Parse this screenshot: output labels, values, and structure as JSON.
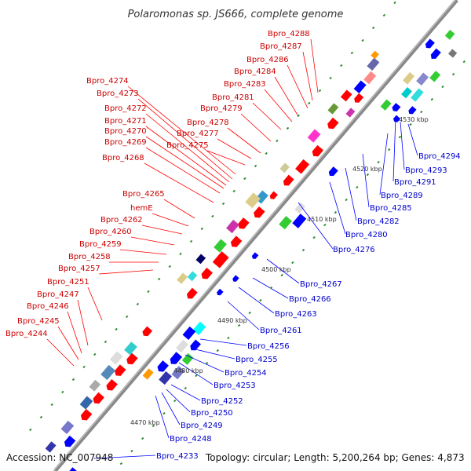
{
  "title": "Polaromonas sp. JS666, complete genome",
  "footer": {
    "accession": "Accession: NC_007948",
    "topology": "Topology: circular; Length: 5,200,264 bp; Genes: 4,873",
    "bottom_gene": "Bpro_4233"
  },
  "colors": {
    "backbone": "#8a8a8a",
    "top_label": "#cc0000",
    "bottom_label": "#0000cc",
    "tick": "#2e8b2e"
  },
  "top_genes": [
    "Bpro_4288",
    "Bpro_4287",
    "Bpro_4286",
    "Bpro_4284",
    "Bpro_4283",
    "Bpro_4281",
    "Bpro_4279",
    "Bpro_4278",
    "Bpro_4277",
    "Bpro_4275",
    "Bpro_4274",
    "Bpro_4273",
    "Bpro_4272",
    "Bpro_4271",
    "Bpro_4270",
    "Bpro_4269",
    "Bpro_4268",
    "Bpro_4265",
    "hemE",
    "Bpro_4262",
    "Bpro_4260",
    "Bpro_4259",
    "Bpro_4258",
    "Bpro_4257",
    "Bpro_4251",
    "Bpro_4247",
    "Bpro_4246",
    "Bpro_4245",
    "Bpro_4244"
  ],
  "bottom_genes": [
    "Bpro_4294",
    "Bpro_4293",
    "Bpro_4291",
    "Bpro_4289",
    "Bpro_4285",
    "Bpro_4282",
    "Bpro_4280",
    "Bpro_4276",
    "Bpro_4267",
    "Bpro_4266",
    "Bpro_4263",
    "Bpro_4261",
    "Bpro_4256",
    "Bpro_4255",
    "Bpro_4254",
    "Bpro_4253",
    "Bpro_4252",
    "Bpro_4250",
    "Bpro_4249",
    "Bpro_4248"
  ],
  "scale_labels": [
    "4530 kbp",
    "4520 kbp",
    "4510 kbp",
    "4500 kbp",
    "4490 kbp",
    "4480 kbp",
    "4470 kbp"
  ]
}
